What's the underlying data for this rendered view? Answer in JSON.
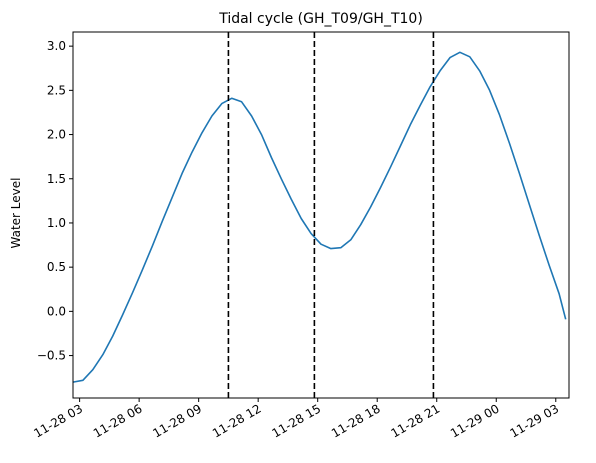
{
  "chart_data": {
    "type": "line",
    "title": "Tidal cycle (GH_T09/GH_T10)",
    "xlabel": "",
    "ylabel": "Water Level",
    "xlim": [
      "2024-11-28 02:40",
      "2024-11-29 03:40"
    ],
    "ylim": [
      -0.98,
      3.16
    ],
    "x_ticks": [
      {
        "label": "11-28 03",
        "value": "2024-11-28 03:00"
      },
      {
        "label": "11-28 06",
        "value": "2024-11-28 06:00"
      },
      {
        "label": "11-28 09",
        "value": "2024-11-28 09:00"
      },
      {
        "label": "11-28 12",
        "value": "2024-11-28 12:00"
      },
      {
        "label": "11-28 15",
        "value": "2024-11-28 15:00"
      },
      {
        "label": "11-28 18",
        "value": "2024-11-28 18:00"
      },
      {
        "label": "11-28 21",
        "value": "2024-11-28 21:00"
      },
      {
        "label": "11-29 00",
        "value": "2024-11-29 00:00"
      },
      {
        "label": "11-29 03",
        "value": "2024-11-29 03:00"
      }
    ],
    "y_ticks": [
      {
        "label": "−0.5",
        "value": -0.5
      },
      {
        "label": "0.0",
        "value": 0.0
      },
      {
        "label": "0.5",
        "value": 0.5
      },
      {
        "label": "1.0",
        "value": 1.0
      },
      {
        "label": "1.5",
        "value": 1.5
      },
      {
        "label": "2.0",
        "value": 2.0
      },
      {
        "label": "2.5",
        "value": 2.5
      },
      {
        "label": "3.0",
        "value": 3.0
      }
    ],
    "grid": false,
    "series": [
      {
        "color": "#1f77b4",
        "x": [
          "2024-11-28 02:40",
          "2024-11-28 03:10",
          "2024-11-28 03:40",
          "2024-11-28 04:10",
          "2024-11-28 04:40",
          "2024-11-28 05:10",
          "2024-11-28 05:40",
          "2024-11-28 06:10",
          "2024-11-28 06:40",
          "2024-11-28 07:10",
          "2024-11-28 07:40",
          "2024-11-28 08:10",
          "2024-11-28 08:40",
          "2024-11-28 09:10",
          "2024-11-28 09:40",
          "2024-11-28 10:10",
          "2024-11-28 10:40",
          "2024-11-28 11:10",
          "2024-11-28 11:40",
          "2024-11-28 12:10",
          "2024-11-28 12:40",
          "2024-11-28 13:10",
          "2024-11-28 13:40",
          "2024-11-28 14:10",
          "2024-11-28 14:40",
          "2024-11-28 15:10",
          "2024-11-28 15:40",
          "2024-11-28 16:10",
          "2024-11-28 16:40",
          "2024-11-28 17:10",
          "2024-11-28 17:40",
          "2024-11-28 18:10",
          "2024-11-28 18:40",
          "2024-11-28 19:10",
          "2024-11-28 19:40",
          "2024-11-28 20:10",
          "2024-11-28 20:40",
          "2024-11-28 21:10",
          "2024-11-28 21:40",
          "2024-11-28 22:10",
          "2024-11-28 22:40",
          "2024-11-28 23:10",
          "2024-11-28 23:40",
          "2024-11-29 00:10",
          "2024-11-29 00:40",
          "2024-11-29 01:10",
          "2024-11-29 01:40",
          "2024-11-29 02:10",
          "2024-11-29 02:40",
          "2024-11-29 03:10",
          "2024-11-29 03:30"
        ],
        "y": [
          -0.8,
          -0.78,
          -0.66,
          -0.49,
          -0.28,
          -0.04,
          0.21,
          0.47,
          0.74,
          1.02,
          1.29,
          1.56,
          1.8,
          2.02,
          2.21,
          2.35,
          2.41,
          2.37,
          2.21,
          2.0,
          1.74,
          1.5,
          1.27,
          1.05,
          0.88,
          0.76,
          0.71,
          0.72,
          0.81,
          0.98,
          1.18,
          1.4,
          1.63,
          1.87,
          2.11,
          2.33,
          2.54,
          2.72,
          2.87,
          2.93,
          2.88,
          2.72,
          2.5,
          2.22,
          1.9,
          1.56,
          1.21,
          0.86,
          0.52,
          0.2,
          -0.09
        ]
      }
    ],
    "vlines": [
      {
        "x": "2024-11-28 10:30",
        "style": "dashed",
        "color": "#000000"
      },
      {
        "x": "2024-11-28 14:50",
        "style": "dashed",
        "color": "#000000"
      },
      {
        "x": "2024-11-28 20:50",
        "style": "dashed",
        "color": "#000000"
      }
    ]
  }
}
